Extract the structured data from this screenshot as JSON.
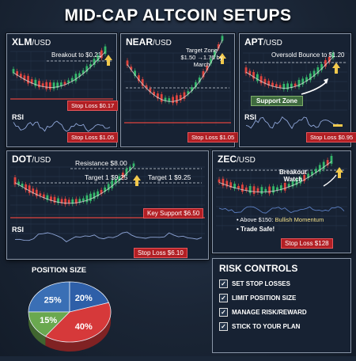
{
  "title": "MID-CAP ALTCOIN SETUPS",
  "colors": {
    "up": "#35b86b",
    "down": "#e0443e",
    "ma": "#d9d9d9",
    "arrow": "#f2c94c",
    "stop": "#b21f24"
  },
  "panels": [
    {
      "id": "xlm",
      "pair": "XLM",
      "quote": "/USD",
      "target": "Breakout to $0.21",
      "stop_loss": "Stop Loss $0.17",
      "rsi": "RSI",
      "stop_loss_rsi": "Stop Loss $1.05"
    },
    {
      "id": "near",
      "pair": "NEAR",
      "quote": "/USD",
      "target_line1": "Target Zone",
      "target_line2": "$1.50 →1.76 by",
      "target_line3": "March",
      "stop_loss": "Stop Loss $1.05"
    },
    {
      "id": "apt",
      "pair": "APT",
      "quote": "/USD",
      "target": "Oversold Bounce to $1.20",
      "support": "Support Zone",
      "rsi": "RSI",
      "stop_loss": "Stop Loss $0.95"
    },
    {
      "id": "dot",
      "pair": "DOT",
      "quote": "/USD",
      "resistance": "Resistance $8.00",
      "target1": "Target 1 $9.25",
      "target2": "Target 1 $9.25",
      "key_support": "Key Support $6.50",
      "rsi": "RSI",
      "stop_loss": "Stop Loss $6.10"
    },
    {
      "id": "zec",
      "pair": "ZEC",
      "quote": "/USD",
      "breakout_line1": "Breakout",
      "breakout_line2": "Watch",
      "note1_prefix": "• Above $150:",
      "note1_suffix": " Bullish Momentum",
      "note2": "• Trade Safe!",
      "stop_loss": "Stop Loss $128"
    }
  ],
  "chart_data": {
    "type": "pie",
    "title": "POSITION SIZE",
    "slices": [
      {
        "label": "25%",
        "value": 25,
        "color": "#3a6fb5"
      },
      {
        "label": "20%",
        "value": 20,
        "color": "#2e5fa8"
      },
      {
        "label": "40%",
        "value": 40,
        "color": "#d6393a"
      },
      {
        "label": "15%",
        "value": 15,
        "color": "#6aa84f"
      }
    ]
  },
  "risk": {
    "title": "RISK CONTROLS",
    "items": [
      "SET STOP LOSSES",
      "LIMIT POSITION SIZE",
      "MANAGE RISK/REWARD",
      "STICK TO YOUR PLAN"
    ]
  }
}
